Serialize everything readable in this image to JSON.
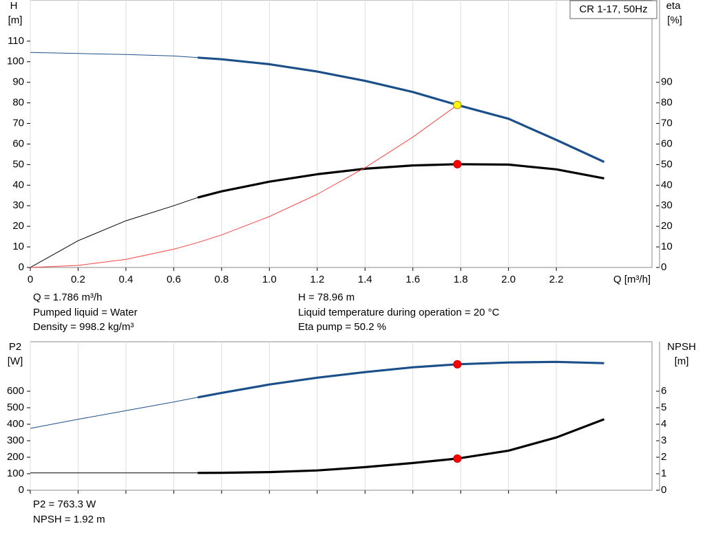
{
  "chart_data": [
    {
      "type": "line",
      "label": "CR 1-17, 50Hz",
      "y_label": [
        "H",
        "[m]"
      ],
      "y2_label": [
        "eta",
        "[%]"
      ],
      "x_label": "Q [m³/h]",
      "xlim": [
        0,
        2.6
      ],
      "xticks": [
        0,
        0.2,
        0.4,
        0.6,
        0.8,
        {
          "value": 1.0,
          "label": "1.0"
        },
        1.2,
        1.4,
        1.6,
        1.8,
        {
          "value": 2.0,
          "label": "2.0"
        },
        2.2
      ],
      "ylim": [
        0,
        130
      ],
      "yticks": [
        0,
        10,
        20,
        30,
        40,
        50,
        60,
        70,
        80,
        90,
        100,
        110
      ],
      "y2lim": [
        0,
        130
      ],
      "y2ticks": [
        0,
        10,
        20,
        30,
        40,
        50,
        60,
        70,
        80,
        90
      ],
      "operating_range": [
        0.7,
        2.4
      ],
      "x": [
        0,
        0.2,
        0.4,
        0.6,
        0.7,
        0.8,
        1.0,
        1.2,
        1.4,
        1.6,
        1.786,
        2.0,
        2.2,
        2.4
      ],
      "series": [
        {
          "color": "#1b4f8a",
          "values": [
            104.5,
            104.0,
            103.5,
            102.8,
            102.0,
            101.2,
            98.8,
            95.2,
            90.7,
            85.3,
            78.96,
            72.3,
            62.0,
            51.3
          ]
        },
        {
          "color": "#000000",
          "axis": "y2",
          "values": [
            0,
            13.0,
            22.7,
            30.0,
            34.0,
            37.0,
            41.7,
            45.3,
            48.0,
            49.6,
            50.2,
            50.0,
            47.7,
            43.3
          ]
        },
        {
          "color": "#ff4040",
          "thin": true,
          "values": [
            0,
            0.99,
            3.96,
            8.9,
            12.1,
            15.8,
            24.75,
            35.6,
            48.5,
            63.4,
            78.96,
            null,
            null,
            null
          ]
        }
      ],
      "points": [
        {
          "x": 1.786,
          "y": 78.96,
          "color": "#ffff00"
        },
        {
          "x": 1.786,
          "y": 50.2,
          "axis": "y2",
          "color": "#ff0000"
        }
      ],
      "annotations": [
        "Q = 1.786 m³/h",
        "Pumped liquid = Water",
        "Density = 998.2 kg/m³",
        "H = 78.96 m",
        "Liquid temperature during operation = 20 °C",
        "Eta pump = 50.2 %"
      ]
    },
    {
      "type": "line",
      "y_label": [
        "P2",
        "[W]"
      ],
      "y2_label": [
        "NPSH",
        "[m]"
      ],
      "xlim": [
        0,
        2.6
      ],
      "xgrid": [
        0,
        0.2,
        0.4,
        0.6,
        0.8,
        1.0,
        1.2,
        1.4,
        1.6,
        1.8,
        2.0,
        2.2
      ],
      "ylim": [
        0,
        900
      ],
      "yticks": [
        0,
        100,
        200,
        300,
        400,
        500,
        600
      ],
      "y2lim": [
        0,
        9
      ],
      "y2ticks": [
        0,
        1,
        2,
        3,
        4,
        5,
        6
      ],
      "operating_range": [
        0.7,
        2.4
      ],
      "x": [
        0,
        0.2,
        0.4,
        0.6,
        0.7,
        0.8,
        1.0,
        1.2,
        1.4,
        1.6,
        1.786,
        2.0,
        2.2,
        2.4
      ],
      "series": [
        {
          "color": "#1b4f8a",
          "values": [
            375,
            430,
            482,
            535,
            563,
            590,
            641,
            682,
            716,
            745,
            763.3,
            774,
            778,
            770
          ]
        },
        {
          "color": "#000000",
          "axis": "y2",
          "values": [
            1.05,
            1.05,
            1.05,
            1.05,
            1.05,
            1.06,
            1.1,
            1.2,
            1.4,
            1.65,
            1.92,
            2.4,
            3.2,
            4.3
          ]
        }
      ],
      "points": [
        {
          "x": 1.786,
          "y": 763.3,
          "color": "#ff0000"
        },
        {
          "x": 1.786,
          "y": 1.92,
          "axis": "y2",
          "color": "#ff0000"
        }
      ],
      "annotations": [
        "P2 = 763.3 W",
        "NPSH = 1.92 m"
      ]
    }
  ]
}
